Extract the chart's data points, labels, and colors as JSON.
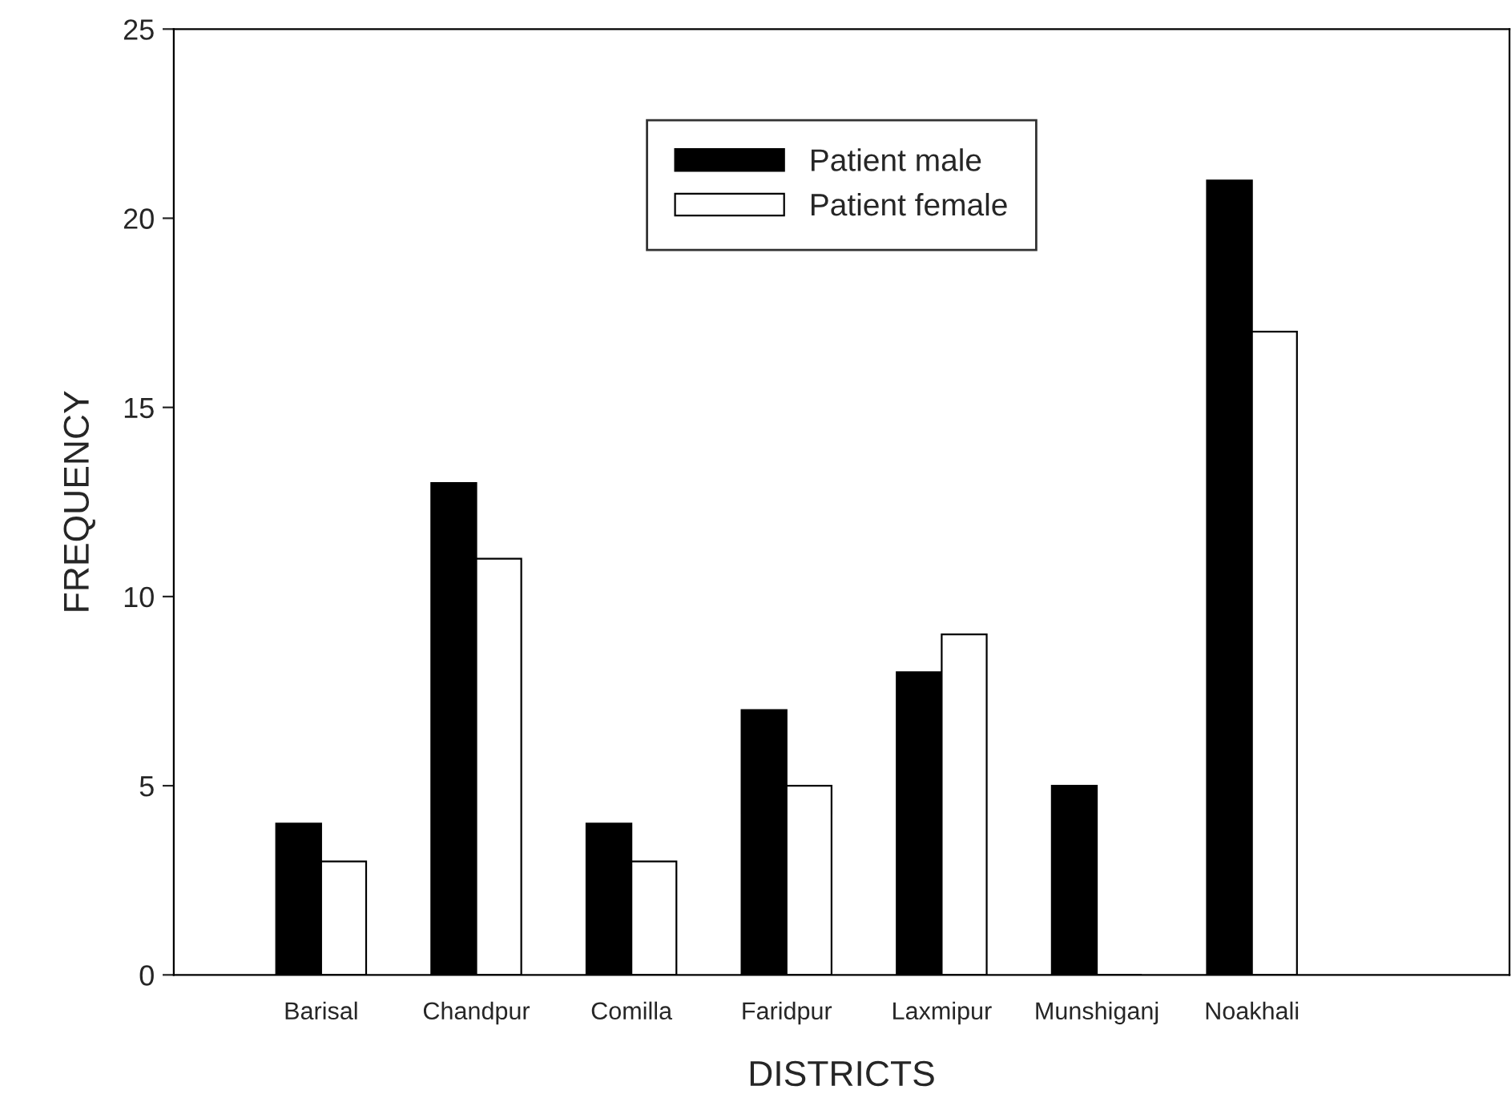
{
  "chart_data": {
    "type": "bar",
    "xlabel": "DISTRICTS",
    "ylabel": "FREQUENCY",
    "categories": [
      "Barisal",
      "Chandpur",
      "Comilla",
      "Faridpur",
      "Laxmipur",
      "Munshiganj",
      "Noakhali"
    ],
    "series": [
      {
        "name": "Patient male",
        "color": "#000000",
        "values": [
          4,
          13,
          4,
          7,
          8,
          5,
          21
        ]
      },
      {
        "name": "Patient female",
        "color": "#ffffff",
        "values": [
          3,
          11,
          3,
          5,
          9,
          0,
          17
        ]
      }
    ],
    "ylim": [
      0,
      25
    ],
    "yticks": [
      0,
      5,
      10,
      15,
      20,
      25
    ],
    "grid": false,
    "legend": "top"
  }
}
